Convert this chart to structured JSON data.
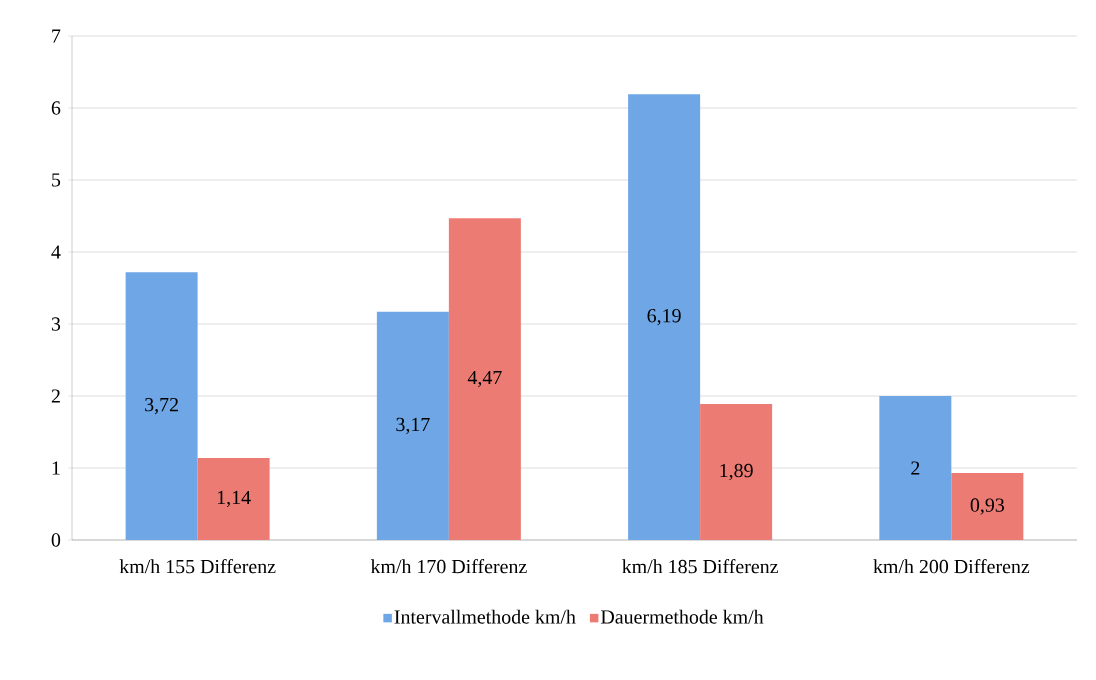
{
  "chart_data": {
    "type": "bar",
    "categories": [
      "km/h 155 Differenz",
      "km/h 170 Differenz",
      "km/h 185 Differenz",
      "km/h 200 Differenz"
    ],
    "series": [
      {
        "name": "Intervallmethode km/h",
        "color": "#6fa6e6",
        "values": [
          3.72,
          3.17,
          6.19,
          2
        ],
        "value_labels": [
          "3,72",
          "3,17",
          "6,19",
          "2"
        ]
      },
      {
        "name": "Dauermethode km/h",
        "color": "#ec7b74",
        "values": [
          1.14,
          4.47,
          1.89,
          0.93
        ],
        "value_labels": [
          "1,14",
          "4,47",
          "1,89",
          "0,93"
        ]
      }
    ],
    "ylim": [
      0,
      7
    ],
    "yticks": [
      0,
      1,
      2,
      3,
      4,
      5,
      6,
      7
    ],
    "grid": "y",
    "legend": "bottom"
  }
}
